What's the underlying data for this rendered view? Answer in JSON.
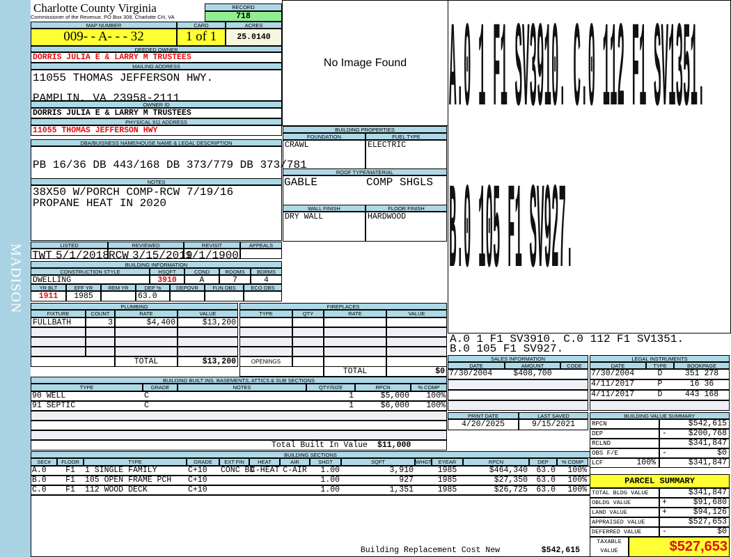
{
  "header": {
    "title": "Charlotte County Virginia",
    "subtitle": "Commissioner of the Revenue, PO Box 308, Charlotte CH, VA",
    "record_label": "RECORD",
    "record": "718",
    "map_number_label": "MAP NUMBER",
    "map_number": "009-  - A-   -   - 32",
    "card_label": "CARD",
    "card": "1 of 1",
    "acres_label": "ACRES",
    "acres": "25.0140"
  },
  "side_label": "MADISON",
  "owner": {
    "deeded_label": "DEEDED OWNER",
    "deeded": "DORRIS JULIA E & LARRY M TRUSTEES",
    "mailing_label": "MAILING ADDRESS",
    "mailing_line1": "11055 THOMAS JEFFERSON HWY.",
    "mailing_line2": "PAMPLIN, VA 23958-2111",
    "owner_id_label": "OWNER ID",
    "owner_id": "DORRIS JULIA E & LARRY M TRUSTEES",
    "physical_label": "PHYSICAL 911 ADDRESS",
    "physical": "11055 THOMAS JEFFERSON HWY"
  },
  "legal": {
    "label": "DBA/BUISNESS NAME/HOUSE NAME & LEGAL DESCRIPTION",
    "text": "PB 16/36 DB 443/168 DB 373/779 DB 373/781"
  },
  "notes": {
    "label": "NOTES",
    "line1": "38X50 W/PORCH COMP-RCW 7/19/16",
    "line2": "PROPANE HEAT IN 2020"
  },
  "image": {
    "placeholder": "No Image Found"
  },
  "dates": {
    "headers": [
      "LISTED",
      "REVIEWED",
      "REVISIT",
      "APPEALS"
    ],
    "listed_by": "TWT",
    "listed": "5/1/2018",
    "reviewed_by": "RCW",
    "reviewed": "3/15/2019",
    "revisit": "1/1/1900",
    "appeals": ""
  },
  "building_info": {
    "label": "BUILDING INFORMATION",
    "headers1": [
      "CONSTRUCTION STYLE",
      "HSQFT",
      "COND",
      "ROOMS",
      "BDRMS"
    ],
    "values1": [
      "DWELLING",
      "3910",
      "A",
      "7",
      "4"
    ],
    "headers2": [
      "YR BLT",
      "EFF YR",
      "REM YR",
      "DEP %",
      "DEPOVR",
      "FUN OBS",
      "ECO OBS"
    ],
    "values2": [
      "1911",
      "1985",
      "",
      "63.0",
      "",
      "",
      ""
    ]
  },
  "building_props": {
    "label": "BUILDING PROPERTIES",
    "foundation_label": "FOUNDATION",
    "foundation": "CRAWL",
    "fuel_label": "FUEL TYPE",
    "fuel": "ELECTRIC",
    "roof_label": "ROOF TYPE/MATERIAL",
    "roof_type": "GABLE",
    "roof_material": "COMP SHGLS",
    "wall_label": "WALL FINISH",
    "wall": "DRY WALL",
    "floor_label": "FLOOR FINISH",
    "floor": "HARDWOOD"
  },
  "sketch": {
    "big_line1": "A.0 1  F1 SV3910.  C.0 112 F1 SV1351.",
    "big_line2": "B.0 105 F1 SV927.",
    "caption_line1": "A.0   1     F1    SV3910.    C.0   112   F1    SV1351.",
    "caption_line2": "B.0   105   F1    SV927."
  },
  "plumbing": {
    "label": "PLUMBING",
    "headers": [
      "FIXTURE",
      "COUNT",
      "RATE",
      "VALUE"
    ],
    "rows": [
      [
        "FULLBATH",
        "3",
        "$4,400",
        "$13,200"
      ],
      [
        "",
        "",
        "",
        ""
      ],
      [
        "",
        "",
        "",
        ""
      ],
      [
        "",
        "",
        "",
        ""
      ]
    ],
    "total_label": "TOTAL",
    "total": "$13,200"
  },
  "fireplaces": {
    "label": "FIREPLACES",
    "headers": [
      "TYPE",
      "QTY",
      "RATE",
      "VALUE"
    ],
    "rows": [
      [
        "",
        "",
        "",
        ""
      ],
      [
        "",
        "",
        "",
        ""
      ],
      [
        "",
        "",
        "",
        ""
      ],
      [
        "",
        "",
        "",
        ""
      ]
    ],
    "openings_label": "OPENINGS",
    "total_label": "TOTAL",
    "total": "$0"
  },
  "built_ins": {
    "label": "BUILDING BUILT INS, BASEMENTS, ATTICS & SUB SECTIONS",
    "headers": [
      "TYPE",
      "GRADE",
      "NOTES",
      "QTY/SIZE",
      "RPCN",
      "% COMP"
    ],
    "rows": [
      [
        "90 WELL",
        "C",
        "",
        "1",
        "$5,000",
        "100%"
      ],
      [
        "91 SEPTIC",
        "C",
        "",
        "1",
        "$6,000",
        "100%"
      ],
      [
        "",
        "",
        "",
        "",
        "",
        ""
      ],
      [
        "",
        "",
        "",
        "",
        "",
        ""
      ],
      [
        "",
        "",
        "",
        "",
        "",
        ""
      ]
    ],
    "total_label": "Total Built In Value",
    "total": "$11,000"
  },
  "sections": {
    "label": "BUILDING SECTIONS",
    "headers": [
      "SEC#",
      "FLOOR",
      "TYPE",
      "GRADE",
      "EXT FIN",
      "HEAT",
      "AIR",
      "SHGT",
      "SQFT",
      "WHGT",
      "EYEAR",
      "RPCN",
      "DEP",
      "% COMP"
    ],
    "rows": [
      [
        "A.0",
        "F1",
        "1 SINGLE FAMILY",
        "C+10",
        "CONC BD",
        "C-HEAT",
        "C-AIR",
        "1.00",
        "3,910",
        "",
        "1985",
        "$464,340",
        "63.0",
        "100%"
      ],
      [
        "B.0",
        "F1",
        "105 OPEN FRAME PCH",
        "C+10",
        "",
        "",
        "",
        "1.00",
        "927",
        "",
        "1985",
        "$27,350",
        "63.0",
        "100%"
      ],
      [
        "C.0",
        "F1",
        "112 WOOD DECK",
        "C+10",
        "",
        "",
        "",
        "1.00",
        "1,351",
        "",
        "1985",
        "$26,725",
        "63.0",
        "100%"
      ]
    ],
    "replacement_label": "Building Replacement Cost New",
    "replacement": "$542,615"
  },
  "sales": {
    "label": "SALES INFORMATION",
    "headers": [
      "DATE",
      "AMOUNT",
      "CODE"
    ],
    "rows": [
      [
        "7/30/2004",
        "$408,700",
        ""
      ],
      [
        "",
        "",
        ""
      ],
      [
        "",
        "",
        ""
      ],
      [
        "",
        "",
        ""
      ]
    ]
  },
  "instruments": {
    "label": "LEGAL INSTRUMENTS",
    "headers": [
      "DATE",
      "TYPE",
      "BOOKPAGE"
    ],
    "rows": [
      [
        "7/30/2004",
        "D",
        "351 278"
      ],
      [
        "4/11/2017",
        "P",
        "16 36"
      ],
      [
        "4/11/2017",
        "D",
        "443 168"
      ],
      [
        "",
        "",
        ""
      ]
    ]
  },
  "print": {
    "print_label": "PRINT DATE",
    "print_date": "4/20/2025",
    "saved_label": "LAST SAVED",
    "last_saved": "9/15/2021"
  },
  "value_summary": {
    "label": "BUILDING VALUE SUMMARY",
    "rows": [
      {
        "label": "RPCN",
        "sign": "",
        "value": "$542,615"
      },
      {
        "label": "DEP",
        "sign": "-",
        "value": "$200,768"
      },
      {
        "label": "RCLND",
        "sign": "",
        "value": "$341,847"
      },
      {
        "label": "OBS F/E",
        "sign": "-",
        "value": "$0"
      },
      {
        "label": "LCF",
        "pct": "100%",
        "sign": "",
        "value": "$341,847"
      }
    ]
  },
  "parcel_summary": {
    "label": "PARCEL SUMMARY",
    "rows": [
      {
        "label": "TOTAL BLDG VALUE",
        "sign": "",
        "value": "$341,847"
      },
      {
        "label": "OBLDG VALUE",
        "sign": "+",
        "value": "$91,680"
      },
      {
        "label": "LAND VALUE",
        "sign": "+",
        "value": "$94,126"
      },
      {
        "label": "APPRAISED VALUE",
        "sign": "",
        "value": "$527,653"
      },
      {
        "label": "DEFERRED VALUE",
        "sign": "-",
        "value": "$0"
      }
    ],
    "taxable_label_1": "TAXABLE",
    "taxable_label_2": "VALUE",
    "taxable": "$527,653"
  },
  "colors": {
    "header_bg": "#add8e6",
    "highlight": "#ffff33",
    "record_bg": "#90ee90",
    "accent_red": "#e01010",
    "strip": "#a9d3e3"
  }
}
